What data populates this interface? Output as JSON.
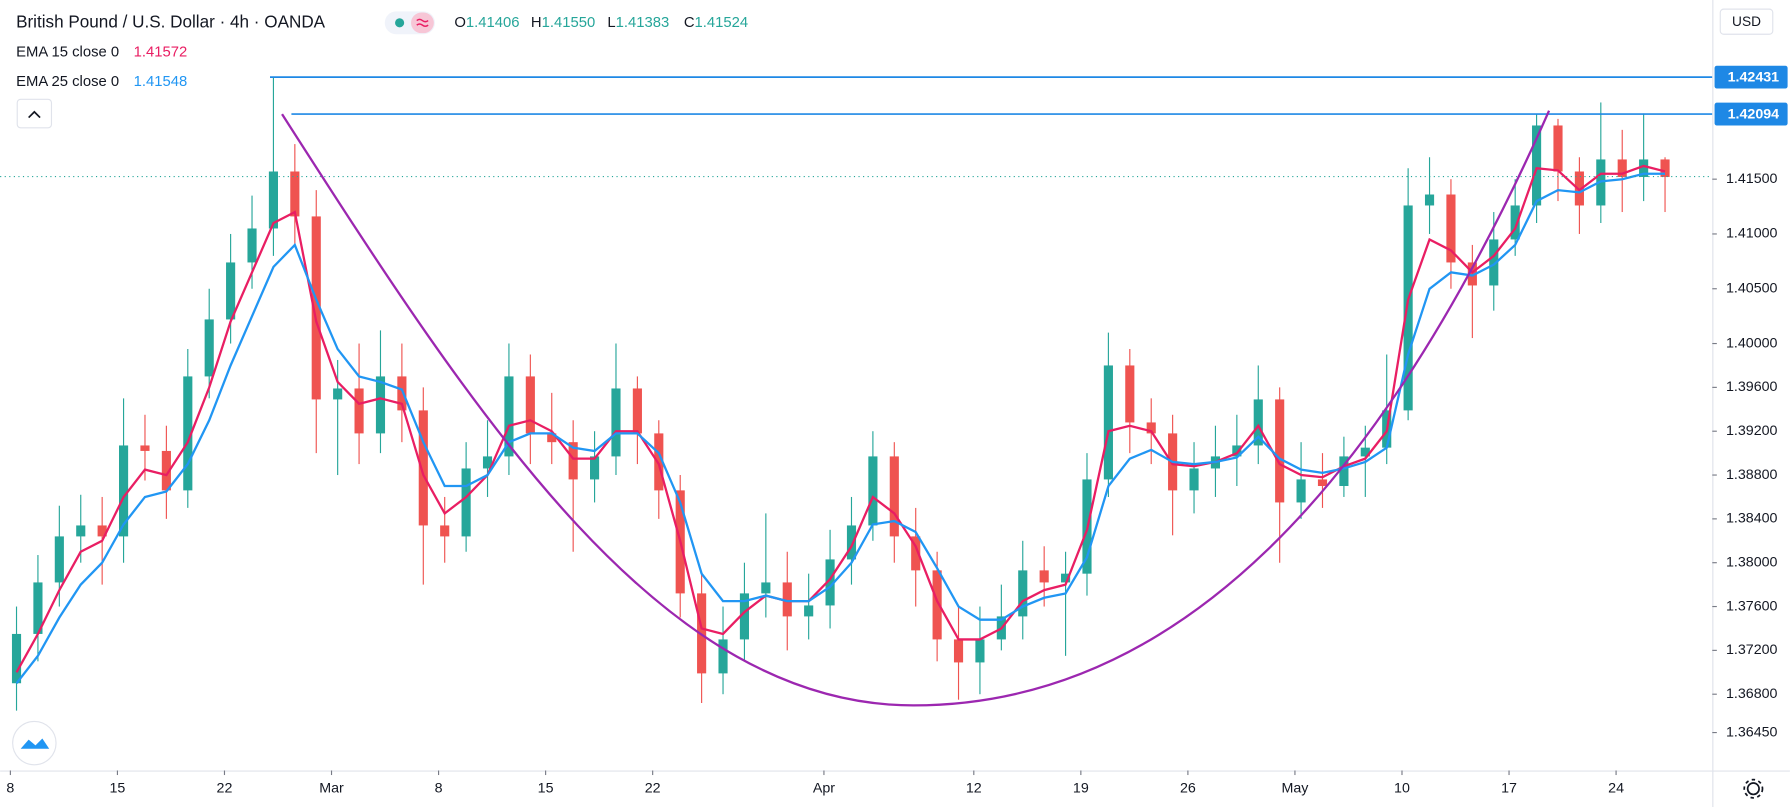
{
  "chart_data": {
    "type": "candlestick",
    "title": "British Pound / U.S. Dollar · 4h · OANDA",
    "ohlc_header": [
      {
        "prefix": "O",
        "value": 1.41406,
        "label": "1.41406"
      },
      {
        "prefix": "H",
        "value": 1.4155,
        "label": "1.41550"
      },
      {
        "prefix": "L",
        "value": 1.41383,
        "label": "1.41383"
      },
      {
        "prefix": "C",
        "value": 1.41524,
        "label": "1.41524"
      }
    ],
    "currency": "USD",
    "categories": [
      "Feb 8",
      "Feb 9",
      "Feb 10",
      "Feb 11",
      "Feb 12",
      "Feb 15",
      "Feb 16",
      "Feb 17",
      "Feb 18",
      "Feb 19",
      "Feb 22",
      "Feb 23",
      "Feb 24",
      "Feb 25",
      "Feb 26",
      "Mar 1",
      "Mar 2",
      "Mar 3",
      "Mar 4",
      "Mar 5",
      "Mar 8",
      "Mar 9",
      "Mar 10",
      "Mar 11",
      "Mar 12",
      "Mar 15",
      "Mar 16",
      "Mar 17",
      "Mar 18",
      "Mar 19",
      "Mar 22",
      "Mar 23",
      "Mar 24",
      "Mar 25",
      "Mar 26",
      "Mar 29",
      "Mar 30",
      "Mar 31",
      "Apr 1",
      "Apr 2",
      "Apr 5",
      "Apr 6",
      "Apr 7",
      "Apr 8",
      "Apr 9",
      "Apr 12",
      "Apr 13",
      "Apr 14",
      "Apr 15",
      "Apr 16",
      "Apr 19",
      "Apr 20",
      "Apr 21",
      "Apr 22",
      "Apr 23",
      "Apr 26",
      "Apr 27",
      "Apr 28",
      "Apr 29",
      "Apr 30",
      "May 3",
      "May 4",
      "May 5",
      "May 6",
      "May 7",
      "May 10",
      "May 11",
      "May 12",
      "May 13",
      "May 14",
      "May 17",
      "May 18",
      "May 19",
      "May 20",
      "May 21",
      "May 24",
      "May 25",
      "May 26"
    ],
    "ohlc": {
      "open": [
        1.369,
        1.3735,
        1.3782,
        1.3824,
        1.3834,
        1.3824,
        1.3907,
        1.3902,
        1.3866,
        1.397,
        1.4022,
        1.4074,
        1.4105,
        1.4157,
        1.4116,
        1.3949,
        1.3959,
        1.3918,
        1.397,
        1.3939,
        1.3834,
        1.3824,
        1.3886,
        1.3897,
        1.397,
        1.3918,
        1.391,
        1.3876,
        1.3897,
        1.3959,
        1.3918,
        1.3866,
        1.3772,
        1.3699,
        1.373,
        1.3772,
        1.3782,
        1.3751,
        1.3761,
        1.3803,
        1.3834,
        1.3897,
        1.3824,
        1.3793,
        1.373,
        1.3709,
        1.373,
        1.3751,
        1.3793,
        1.3782,
        1.379,
        1.3876,
        1.398,
        1.3928,
        1.3918,
        1.3866,
        1.3886,
        1.3897,
        1.3907,
        1.3949,
        1.3855,
        1.3876,
        1.387,
        1.3897,
        1.3905,
        1.3939,
        1.4126,
        1.4136,
        1.4074,
        1.4053,
        1.4095,
        1.4126,
        1.4199,
        1.4157,
        1.4126,
        1.4168,
        1.4152,
        1.4168
      ],
      "high": [
        1.376,
        1.3807,
        1.3852,
        1.3862,
        1.386,
        1.395,
        1.3935,
        1.3925,
        1.3995,
        1.405,
        1.41,
        1.4135,
        1.4243,
        1.4182,
        1.414,
        1.3985,
        1.4,
        1.4012,
        1.4,
        1.396,
        1.386,
        1.391,
        1.393,
        1.4,
        1.399,
        1.3955,
        1.393,
        1.392,
        1.4,
        1.397,
        1.393,
        1.388,
        1.379,
        1.376,
        1.38,
        1.3845,
        1.381,
        1.379,
        1.383,
        1.386,
        1.392,
        1.391,
        1.385,
        1.381,
        1.376,
        1.376,
        1.378,
        1.382,
        1.3815,
        1.381,
        1.39,
        1.401,
        1.3995,
        1.395,
        1.3935,
        1.391,
        1.3925,
        1.3935,
        1.398,
        1.396,
        1.391,
        1.39,
        1.3915,
        1.3925,
        1.399,
        1.416,
        1.417,
        1.415,
        1.409,
        1.412,
        1.415,
        1.4209,
        1.4205,
        1.417,
        1.422,
        1.4195,
        1.421,
        1.417
      ],
      "low": [
        1.3665,
        1.371,
        1.376,
        1.38,
        1.378,
        1.38,
        1.3875,
        1.384,
        1.385,
        1.395,
        1.4,
        1.405,
        1.408,
        1.409,
        1.39,
        1.388,
        1.389,
        1.39,
        1.391,
        1.378,
        1.38,
        1.381,
        1.386,
        1.388,
        1.389,
        1.389,
        1.381,
        1.3855,
        1.388,
        1.389,
        1.384,
        1.375,
        1.3672,
        1.368,
        1.371,
        1.375,
        1.372,
        1.373,
        1.374,
        1.378,
        1.382,
        1.38,
        1.376,
        1.371,
        1.3675,
        1.368,
        1.372,
        1.373,
        1.376,
        1.3715,
        1.377,
        1.386,
        1.39,
        1.389,
        1.3825,
        1.3845,
        1.386,
        1.387,
        1.389,
        1.38,
        1.384,
        1.385,
        1.386,
        1.386,
        1.389,
        1.393,
        1.41,
        1.405,
        1.4005,
        1.403,
        1.408,
        1.411,
        1.413,
        1.41,
        1.411,
        1.412,
        1.413,
        1.412
      ],
      "close": [
        1.3735,
        1.3782,
        1.3824,
        1.3834,
        1.3824,
        1.3907,
        1.3902,
        1.3866,
        1.397,
        1.4022,
        1.4074,
        1.4105,
        1.4157,
        1.4116,
        1.3949,
        1.3959,
        1.3918,
        1.397,
        1.3939,
        1.3834,
        1.3824,
        1.3886,
        1.3897,
        1.397,
        1.3918,
        1.391,
        1.3876,
        1.3897,
        1.3959,
        1.3918,
        1.3866,
        1.3772,
        1.3699,
        1.373,
        1.3772,
        1.3782,
        1.3751,
        1.3761,
        1.3803,
        1.3834,
        1.3897,
        1.3824,
        1.3793,
        1.373,
        1.3709,
        1.373,
        1.3751,
        1.3793,
        1.3782,
        1.379,
        1.3876,
        1.398,
        1.3928,
        1.3918,
        1.3866,
        1.3886,
        1.3897,
        1.3907,
        1.3949,
        1.3855,
        1.3876,
        1.387,
        1.3897,
        1.3905,
        1.3939,
        1.4126,
        1.4136,
        1.4074,
        1.4053,
        1.4095,
        1.4126,
        1.4199,
        1.4157,
        1.4126,
        1.4168,
        1.4152,
        1.4168,
        1.4152
      ]
    },
    "up_color": "#26a69a",
    "down_color": "#ef5350",
    "series": [
      {
        "name": "EMA 15 close 0",
        "last": 1.41572,
        "color": "#e91e63",
        "values": [
          1.37,
          1.3735,
          1.3775,
          1.381,
          1.382,
          1.386,
          1.3885,
          1.388,
          1.391,
          1.396,
          1.402,
          1.4065,
          1.411,
          1.412,
          1.402,
          1.3965,
          1.3945,
          1.395,
          1.3945,
          1.388,
          1.3845,
          1.386,
          1.388,
          1.3925,
          1.393,
          1.392,
          1.3895,
          1.3895,
          1.392,
          1.392,
          1.389,
          1.382,
          1.374,
          1.3735,
          1.3755,
          1.377,
          1.3765,
          1.3765,
          1.3785,
          1.3815,
          1.386,
          1.3845,
          1.3815,
          1.3765,
          1.373,
          1.373,
          1.374,
          1.3765,
          1.3775,
          1.378,
          1.383,
          1.392,
          1.3925,
          1.392,
          1.389,
          1.3888,
          1.3892,
          1.39,
          1.3925,
          1.389,
          1.388,
          1.3878,
          1.3888,
          1.3895,
          1.392,
          1.404,
          1.4095,
          1.4085,
          1.4065,
          1.408,
          1.4105,
          1.416,
          1.4158,
          1.414,
          1.4155,
          1.4155,
          1.4162,
          1.4157
        ]
      },
      {
        "name": "EMA 25 close 0",
        "last": 1.41548,
        "color": "#2196f3",
        "values": [
          1.369,
          1.3715,
          1.375,
          1.378,
          1.38,
          1.3835,
          1.386,
          1.3865,
          1.389,
          1.393,
          1.398,
          1.4025,
          1.407,
          1.409,
          1.404,
          1.3995,
          1.397,
          1.3965,
          1.3958,
          1.391,
          1.387,
          1.387,
          1.388,
          1.391,
          1.3918,
          1.3918,
          1.3905,
          1.3902,
          1.3918,
          1.3918,
          1.39,
          1.3855,
          1.379,
          1.3765,
          1.3765,
          1.377,
          1.3765,
          1.3765,
          1.3778,
          1.38,
          1.3835,
          1.3838,
          1.3828,
          1.3795,
          1.376,
          1.3748,
          1.3748,
          1.376,
          1.3768,
          1.3772,
          1.3805,
          1.387,
          1.3895,
          1.3903,
          1.3892,
          1.389,
          1.3892,
          1.3896,
          1.3915,
          1.3895,
          1.3885,
          1.3882,
          1.3886,
          1.3892,
          1.3905,
          1.399,
          1.405,
          1.4065,
          1.4062,
          1.4072,
          1.409,
          1.413,
          1.414,
          1.4138,
          1.4148,
          1.415,
          1.4155,
          1.4155
        ]
      }
    ],
    "horizontal_lines": [
      {
        "value": 1.42431,
        "start": "Feb 24",
        "color": "#1e88e5"
      },
      {
        "value": 1.42094,
        "start": "Feb 25",
        "color": "#1e88e5"
      }
    ],
    "ylim": [
      1.36104,
      1.43135
    ],
    "yticks": [
      {
        "value": 1.415,
        "label": "1.41500"
      },
      {
        "value": 1.41,
        "label": "1.41000"
      },
      {
        "value": 1.405,
        "label": "1.40500"
      },
      {
        "value": 1.4,
        "label": "1.40000"
      },
      {
        "value": 1.396,
        "label": "1.39600"
      },
      {
        "value": 1.392,
        "label": "1.39200"
      },
      {
        "value": 1.388,
        "label": "1.38800"
      },
      {
        "value": 1.384,
        "label": "1.38400"
      },
      {
        "value": 1.38,
        "label": "1.38000"
      },
      {
        "value": 1.376,
        "label": "1.37600"
      },
      {
        "value": 1.372,
        "label": "1.37200"
      },
      {
        "value": 1.368,
        "label": "1.36800"
      },
      {
        "value": 1.3645,
        "label": "1.36450"
      }
    ],
    "xticks": [
      {
        "value": "Feb 8",
        "label": "8"
      },
      {
        "value": "Feb 15",
        "label": "15"
      },
      {
        "value": "Feb 22",
        "label": "22"
      },
      {
        "value": "Mar 1",
        "label": "Mar"
      },
      {
        "value": "Mar 8",
        "label": "8"
      },
      {
        "value": "Mar 15",
        "label": "15"
      },
      {
        "value": "Mar 22",
        "label": "22"
      },
      {
        "value": "Apr 1",
        "label": "Apr"
      },
      {
        "value": "Apr 12",
        "label": "12"
      },
      {
        "value": "Apr 19",
        "label": "19"
      },
      {
        "value": "Apr 26",
        "label": "26"
      },
      {
        "value": "May 3",
        "label": "May"
      },
      {
        "value": "May 10",
        "label": "10"
      },
      {
        "value": "May 17",
        "label": "17"
      },
      {
        "value": "May 24",
        "label": "24"
      }
    ]
  }
}
